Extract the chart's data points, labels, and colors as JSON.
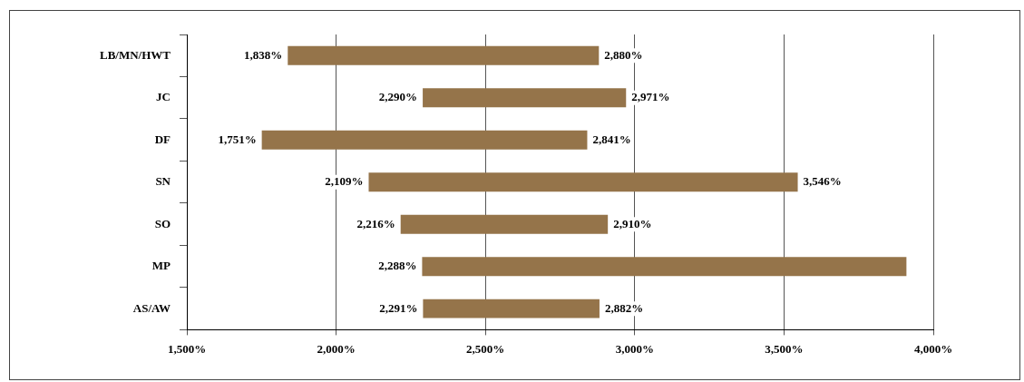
{
  "chart_data": {
    "type": "bar",
    "orientation": "horizontal",
    "categories": [
      "LB/MN/HWT",
      "JC",
      "DF",
      "SN",
      "SO",
      "MP",
      "AS/AW"
    ],
    "base": [
      1838,
      2290,
      1751,
      2109,
      2216,
      2288,
      2291
    ],
    "values": [
      1042,
      681,
      1090,
      1437,
      694,
      1622,
      591
    ],
    "color": "#95744a",
    "xlim": [
      1500,
      4000
    ],
    "xticks": [
      {
        "value": 1500,
        "label": "1,500%"
      },
      {
        "value": 2000,
        "label": "2,000%"
      },
      {
        "value": 2500,
        "label": "2,500%"
      },
      {
        "value": 3000,
        "label": "3,000%"
      },
      {
        "value": 3500,
        "label": "3,500%"
      },
      {
        "value": 4000,
        "label": "4,000%"
      }
    ],
    "grid": "x",
    "annotations": [
      {
        "text": "1,838%",
        "x": 1838,
        "y": "LB/MN/HWT"
      },
      {
        "text": "2,880%",
        "x": 2880,
        "y": "LB/MN/HWT"
      },
      {
        "text": "2,290%",
        "x": 2290,
        "y": "JC"
      },
      {
        "text": "2,971%",
        "x": 2971,
        "y": "JC"
      },
      {
        "text": "1,751%",
        "x": 1751,
        "y": "DF"
      },
      {
        "text": "2,841%",
        "x": 2841,
        "y": "DF"
      },
      {
        "text": "2,109%",
        "x": 2109,
        "y": "SN"
      },
      {
        "text": "3,546%",
        "x": 3546,
        "y": "SN"
      },
      {
        "text": "2,216%",
        "x": 2216,
        "y": "SO"
      },
      {
        "text": "2,910%",
        "x": 2910,
        "y": "SO"
      },
      {
        "text": "2,288%",
        "x": 2288,
        "y": "MP"
      },
      {
        "text": "2,291%",
        "x": 2291,
        "y": "AS/AW"
      },
      {
        "text": "2,882%",
        "x": 2882,
        "y": "AS/AW"
      }
    ]
  }
}
